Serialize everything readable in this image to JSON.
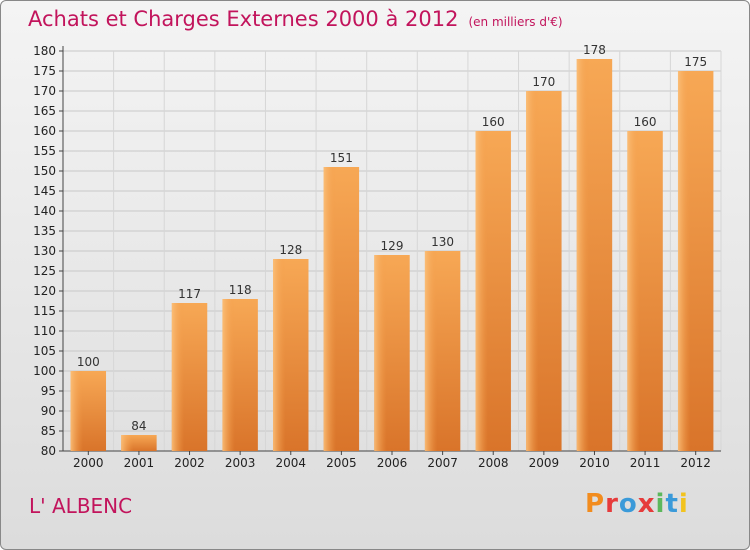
{
  "header": {
    "title": "Achats et Charges Externes 2000 à 2012",
    "unit": "(en milliers d'€)"
  },
  "footer": {
    "town": "L' ALBENC",
    "logo": "Proxiti"
  },
  "colors": {
    "title": "#c2145c",
    "bar_light": "#f7a855",
    "bar_dark": "#d9742a"
  },
  "chart_data": {
    "type": "bar",
    "categories": [
      "2000",
      "2001",
      "2002",
      "2003",
      "2004",
      "2005",
      "2006",
      "2007",
      "2008",
      "2009",
      "2010",
      "2011",
      "2012"
    ],
    "values": [
      100,
      84,
      117,
      118,
      128,
      151,
      129,
      130,
      160,
      170,
      178,
      160,
      175
    ],
    "title": "Achats et Charges Externes 2000 à 2012",
    "subtitle": "(en milliers d'€)",
    "ylim": [
      80,
      180
    ],
    "yticks": [
      80,
      85,
      90,
      95,
      100,
      105,
      110,
      115,
      120,
      125,
      130,
      135,
      140,
      145,
      150,
      155,
      160,
      165,
      170,
      175,
      180
    ],
    "grid": true,
    "legend": "none"
  }
}
